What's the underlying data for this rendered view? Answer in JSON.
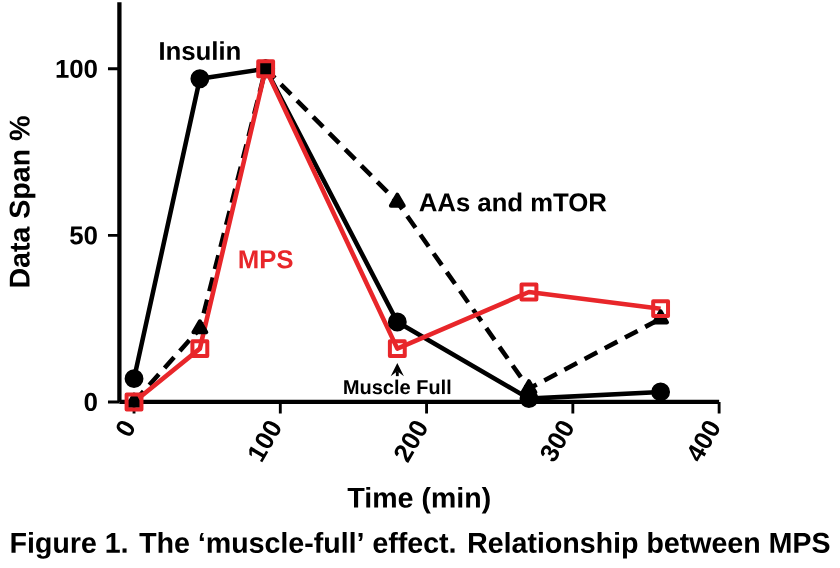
{
  "chart_data": {
    "type": "line",
    "xlabel": "Time (min)",
    "ylabel": "Data Span %",
    "x": [
      0,
      45,
      90,
      180,
      270,
      360
    ],
    "series": [
      {
        "name": "Insulin",
        "color": "#000000",
        "marker": "circle",
        "line_style": "solid",
        "values": [
          7,
          97,
          100,
          24,
          1,
          3
        ]
      },
      {
        "name": "AAs and mTOR",
        "color": "#000000",
        "marker": "triangle",
        "line_style": "dashed",
        "values": [
          0,
          22,
          100,
          60,
          4,
          25
        ]
      },
      {
        "name": "MPS",
        "color": "#e8262a",
        "marker": "square",
        "line_style": "solid",
        "values": [
          0,
          16,
          100,
          16,
          33,
          28
        ]
      }
    ],
    "xlim": [
      -10,
      400
    ],
    "xticks": [
      0,
      100,
      200,
      300,
      400
    ],
    "ylim": [
      0,
      120
    ],
    "yticks": [
      0,
      50,
      100
    ],
    "annotations": [
      {
        "text": "Muscle Full",
        "x": 180,
        "y": 16
      },
      "Figure 1. The ‘muscle-full’ effect. Relationship between MPS"
    ]
  }
}
